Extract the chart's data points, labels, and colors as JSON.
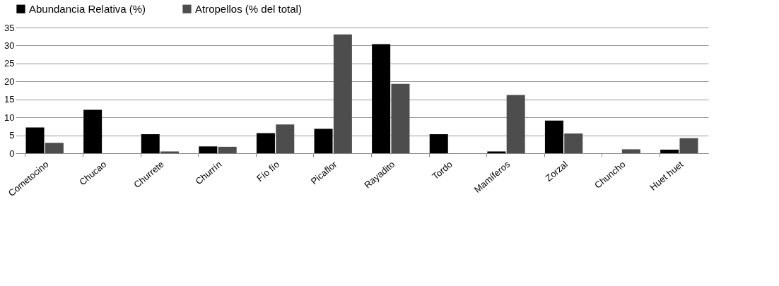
{
  "chart_data": {
    "type": "bar",
    "categories": [
      "Cometocino",
      "Chucao",
      "Churrete",
      "Churrín",
      "Fío fío",
      "Picaflor",
      "Rayadito",
      "Tordo",
      "Mamíferos",
      "Zorzal",
      "Chuncho",
      "Huet huet"
    ],
    "series": [
      {
        "name": "Abundancia Relativa (%)",
        "color": "#000000",
        "values": [
          7.2,
          12.1,
          5.3,
          1.9,
          5.6,
          6.8,
          30.4,
          5.3,
          0.5,
          9.1,
          0,
          1.0
        ]
      },
      {
        "name": "Atropellos (% del total)",
        "color": "#4d4d4d",
        "values": [
          2.9,
          0,
          0.5,
          1.8,
          8.0,
          33.1,
          19.3,
          0,
          16.2,
          5.5,
          1.1,
          4.2
        ]
      }
    ],
    "ylim": [
      0,
      35
    ],
    "yticks": [
      0,
      5,
      10,
      15,
      20,
      25,
      30,
      35
    ],
    "grid": "y",
    "legend": "top"
  }
}
